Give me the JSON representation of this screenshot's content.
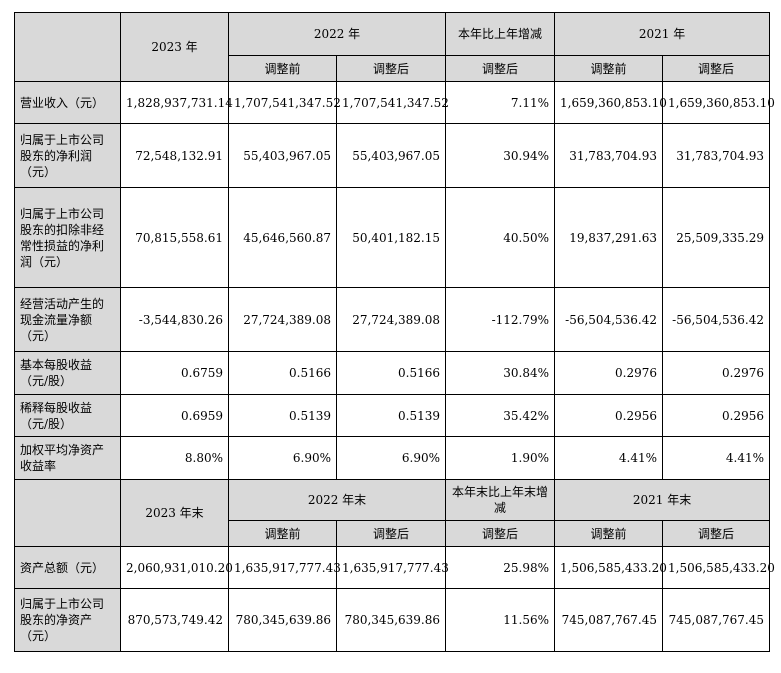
{
  "header1": {
    "col_2023": "2023 年",
    "col_2022": "2022 年",
    "col_change": "本年比上年增减",
    "col_2021": "2021 年",
    "sub_before": "调整前",
    "sub_after": "调整后",
    "sub_change_after": "调整后",
    "sub_2021_before": "调整前",
    "sub_2021_after": "调整后"
  },
  "rows1": [
    {
      "label": "营业收入（元）",
      "v2023": "1,828,937,731.14",
      "v2022_before": "1,707,541,347.52",
      "v2022_after": "1,707,541,347.52",
      "change": "7.11%",
      "v2021_before": "1,659,360,853.10",
      "v2021_after": "1,659,360,853.10"
    },
    {
      "label": "归属于上市公司股东的净利润（元）",
      "v2023": "72,548,132.91",
      "v2022_before": "55,403,967.05",
      "v2022_after": "55,403,967.05",
      "change": "30.94%",
      "v2021_before": "31,783,704.93",
      "v2021_after": "31,783,704.93"
    },
    {
      "label": "归属于上市公司股东的扣除非经常性损益的净利润（元）",
      "v2023": "70,815,558.61",
      "v2022_before": "45,646,560.87",
      "v2022_after": "50,401,182.15",
      "change": "40.50%",
      "v2021_before": "19,837,291.63",
      "v2021_after": "25,509,335.29"
    },
    {
      "label": "经营活动产生的现金流量净额（元）",
      "v2023": "-3,544,830.26",
      "v2022_before": "27,724,389.08",
      "v2022_after": "27,724,389.08",
      "change": "-112.79%",
      "v2021_before": "-56,504,536.42",
      "v2021_after": "-56,504,536.42"
    },
    {
      "label": "基本每股收益（元/股）",
      "v2023": "0.6759",
      "v2022_before": "0.5166",
      "v2022_after": "0.5166",
      "change": "30.84%",
      "v2021_before": "0.2976",
      "v2021_after": "0.2976"
    },
    {
      "label": "稀释每股收益（元/股）",
      "v2023": "0.6959",
      "v2022_before": "0.5139",
      "v2022_after": "0.5139",
      "change": "35.42%",
      "v2021_before": "0.2956",
      "v2021_after": "0.2956"
    },
    {
      "label": "加权平均净资产收益率",
      "v2023": "8.80%",
      "v2022_before": "6.90%",
      "v2022_after": "6.90%",
      "change": "1.90%",
      "v2021_before": "4.41%",
      "v2021_after": "4.41%"
    }
  ],
  "header2": {
    "col_2023": "2023 年末",
    "col_2022": "2022 年末",
    "col_change": "本年末比上年末增减",
    "col_2021": "2021 年末",
    "sub_before": "调整前",
    "sub_after": "调整后",
    "sub_change_after": "调整后",
    "sub_2021_before": "调整前",
    "sub_2021_after": "调整后"
  },
  "rows2": [
    {
      "label": "资产总额（元）",
      "v2023": "2,060,931,010.20",
      "v2022_before": "1,635,917,777.43",
      "v2022_after": "1,635,917,777.43",
      "change": "25.98%",
      "v2021_before": "1,506,585,433.20",
      "v2021_after": "1,506,585,433.20"
    },
    {
      "label": "归属于上市公司股东的净资产（元）",
      "v2023": "870,573,749.42",
      "v2022_before": "780,345,639.86",
      "v2022_after": "780,345,639.86",
      "change": "11.56%",
      "v2021_before": "745,087,767.45",
      "v2021_after": "745,087,767.45"
    }
  ]
}
